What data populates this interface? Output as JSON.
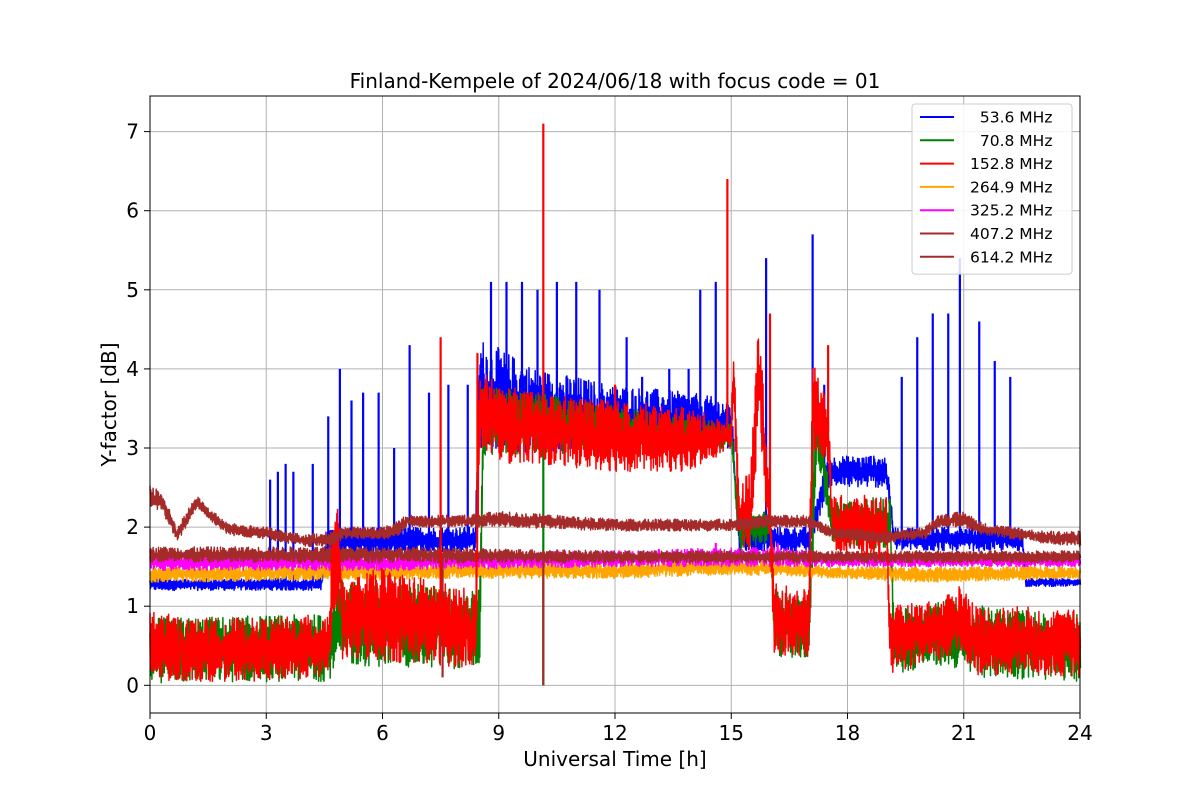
{
  "chart_data": {
    "type": "line",
    "title": "Finland-Kempele of 2024/06/18 with focus code = 01",
    "xlabel": "Universal Time [h]",
    "ylabel": "Y-factor [dB]",
    "xlim": [
      0,
      24
    ],
    "ylim": [
      -0.35,
      7.45
    ],
    "xticks": [
      0,
      3,
      6,
      9,
      12,
      15,
      18,
      21,
      24
    ],
    "xtick_labels": [
      "0",
      "3",
      "6",
      "9",
      "12",
      "15",
      "18",
      "21",
      "24"
    ],
    "yticks": [
      0,
      1,
      2,
      3,
      4,
      5,
      6,
      7
    ],
    "ytick_labels": [
      "0",
      "1",
      "2",
      "3",
      "4",
      "5",
      "6",
      "7"
    ],
    "grid": true,
    "legend_position": "top-right",
    "series": [
      {
        "name": "  53.6 MHz",
        "color": "#0000ff",
        "band": [
          [
            0,
            1.2,
            1.35
          ],
          [
            3,
            1.2,
            1.35
          ],
          [
            4.4,
            1.2,
            1.35
          ],
          [
            4.6,
            1.6,
            2.0
          ],
          [
            8.4,
            1.7,
            2.0
          ],
          [
            8.5,
            3.0,
            4.4
          ],
          [
            10,
            2.9,
            4.0
          ],
          [
            12,
            3.0,
            3.8
          ],
          [
            14,
            3.0,
            3.7
          ],
          [
            15,
            3.0,
            3.6
          ],
          [
            15.2,
            1.7,
            2.0
          ],
          [
            17,
            1.7,
            2.0
          ],
          [
            17.5,
            2.5,
            2.9
          ],
          [
            19,
            2.5,
            2.9
          ],
          [
            19.2,
            1.7,
            2.0
          ],
          [
            22.5,
            1.7,
            2.0
          ],
          [
            22.6,
            1.25,
            1.35
          ],
          [
            24,
            1.25,
            1.35
          ]
        ],
        "spikes": [
          [
            3.1,
            2.6
          ],
          [
            3.3,
            2.7
          ],
          [
            3.5,
            2.8
          ],
          [
            3.7,
            2.7
          ],
          [
            4.2,
            2.8
          ],
          [
            4.6,
            3.4
          ],
          [
            4.9,
            4.0
          ],
          [
            5.2,
            3.6
          ],
          [
            5.5,
            3.7
          ],
          [
            5.9,
            3.7
          ],
          [
            6.3,
            3.0
          ],
          [
            6.7,
            4.3
          ],
          [
            7.2,
            3.7
          ],
          [
            7.7,
            3.8
          ],
          [
            8.2,
            3.8
          ],
          [
            8.8,
            5.1
          ],
          [
            9.2,
            5.1
          ],
          [
            9.6,
            5.1
          ],
          [
            10.0,
            5.0
          ],
          [
            10.5,
            5.1
          ],
          [
            11.0,
            5.1
          ],
          [
            11.6,
            5.0
          ],
          [
            12.3,
            4.4
          ],
          [
            12.7,
            3.9
          ],
          [
            13.4,
            4.0
          ],
          [
            13.9,
            4.0
          ],
          [
            14.2,
            5.0
          ],
          [
            14.6,
            5.1
          ],
          [
            15.9,
            5.4
          ],
          [
            17.1,
            5.7
          ],
          [
            17.4,
            3.8
          ],
          [
            18.6,
            2.9
          ],
          [
            19.4,
            3.9
          ],
          [
            19.8,
            4.4
          ],
          [
            20.2,
            4.7
          ],
          [
            20.6,
            4.7
          ],
          [
            20.9,
            5.4
          ],
          [
            21.4,
            4.6
          ],
          [
            21.8,
            4.1
          ],
          [
            22.2,
            3.9
          ]
        ]
      },
      {
        "name": "  70.8 MHz",
        "color": "#008000",
        "band": [
          [
            0,
            0.03,
            0.85
          ],
          [
            4.6,
            0.05,
            0.9
          ],
          [
            4.8,
            0.25,
            1.4
          ],
          [
            8.5,
            0.2,
            1.2
          ],
          [
            8.6,
            2.9,
            3.8
          ],
          [
            15,
            3.0,
            3.3
          ],
          [
            15.2,
            1.7,
            2.2
          ],
          [
            16,
            1.8,
            2.2
          ],
          [
            16.1,
            0.35,
            1.2
          ],
          [
            17,
            0.35,
            1.1
          ],
          [
            17.2,
            2.9,
            3.7
          ],
          [
            17.6,
            1.8,
            2.3
          ],
          [
            19.1,
            1.7,
            2.4
          ],
          [
            19.2,
            0.15,
            0.95
          ],
          [
            20.5,
            0.25,
            1.1
          ],
          [
            21.5,
            0.1,
            1.0
          ],
          [
            24,
            0.05,
            0.9
          ]
        ],
        "spikes": [
          [
            10.15,
            0.0
          ],
          [
            17.1,
            3.7
          ]
        ]
      },
      {
        "name": "152.8 MHz",
        "color": "#ff0000",
        "band": [
          [
            0,
            0.05,
            0.95
          ],
          [
            1,
            0.05,
            0.85
          ],
          [
            3,
            0.05,
            0.85
          ],
          [
            4.4,
            0.1,
            0.9
          ],
          [
            4.65,
            0.2,
            1.0
          ],
          [
            4.7,
            0.8,
            2.3
          ],
          [
            4.9,
            0.8,
            2.2
          ],
          [
            4.95,
            0.3,
            1.3
          ],
          [
            6,
            0.3,
            1.5
          ],
          [
            7.5,
            0.25,
            1.3
          ],
          [
            8.4,
            0.2,
            1.2
          ],
          [
            8.5,
            3.0,
            4.0
          ],
          [
            9.0,
            2.8,
            3.8
          ],
          [
            10,
            2.8,
            3.7
          ],
          [
            12,
            2.7,
            3.6
          ],
          [
            14,
            2.7,
            3.5
          ],
          [
            15,
            3.0,
            3.3
          ],
          [
            15.05,
            3.5,
            4.4
          ],
          [
            15.2,
            1.6,
            2.6
          ],
          [
            15.5,
            1.7,
            2.7
          ],
          [
            15.7,
            3.3,
            4.7
          ],
          [
            16.0,
            1.6,
            2.6
          ],
          [
            16.1,
            0.35,
            1.3
          ],
          [
            17,
            0.35,
            1.2
          ],
          [
            17.1,
            3.0,
            4.2
          ],
          [
            17.5,
            2.8,
            3.6
          ],
          [
            17.6,
            1.7,
            2.4
          ],
          [
            19.0,
            1.6,
            2.4
          ],
          [
            19.1,
            0.15,
            1.0
          ],
          [
            20.5,
            0.3,
            1.1
          ],
          [
            20.9,
            0.4,
            1.3
          ],
          [
            21.4,
            0.1,
            1.0
          ],
          [
            22.5,
            0.15,
            1.0
          ],
          [
            24,
            0.1,
            0.95
          ]
        ],
        "spikes": [
          [
            7.5,
            4.4
          ],
          [
            8.45,
            4.2
          ],
          [
            10.15,
            7.1
          ],
          [
            12.0,
            3.8
          ],
          [
            14.9,
            6.4
          ],
          [
            16.0,
            4.7
          ],
          [
            17.5,
            4.3
          ]
        ]
      },
      {
        "name": "264.9 MHz",
        "color": "#ffa500",
        "band": [
          [
            0,
            1.3,
            1.5
          ],
          [
            8,
            1.35,
            1.55
          ],
          [
            12,
            1.35,
            1.55
          ],
          [
            15,
            1.4,
            1.6
          ],
          [
            18,
            1.35,
            1.5
          ],
          [
            20,
            1.3,
            1.5
          ],
          [
            24,
            1.35,
            1.5
          ]
        ],
        "spikes": []
      },
      {
        "name": "325.2 MHz",
        "color": "#ff00ff",
        "band": [
          [
            0,
            1.45,
            1.65
          ],
          [
            6,
            1.45,
            1.65
          ],
          [
            12,
            1.5,
            1.7
          ],
          [
            16,
            1.5,
            1.75
          ],
          [
            18,
            1.5,
            1.65
          ],
          [
            24,
            1.5,
            1.65
          ]
        ],
        "spikes": [
          [
            14.6,
            1.8
          ],
          [
            16.2,
            1.8
          ]
        ]
      },
      {
        "name": "407.2 MHz",
        "color": "#a52a2a",
        "band": [
          [
            0,
            1.55,
            1.75
          ],
          [
            6,
            1.55,
            1.75
          ],
          [
            12,
            1.55,
            1.7
          ],
          [
            18,
            1.55,
            1.7
          ],
          [
            24,
            1.55,
            1.7
          ]
        ],
        "spikes": [
          [
            7.55,
            0.1
          ],
          [
            10.15,
            0.0
          ]
        ]
      },
      {
        "name": "614.2 MHz",
        "color": "#a52a2a",
        "band": [
          [
            0,
            2.25,
            2.55
          ],
          [
            0.3,
            2.2,
            2.45
          ],
          [
            0.7,
            1.8,
            2.0
          ],
          [
            1.2,
            2.25,
            2.4
          ],
          [
            1.5,
            2.1,
            2.25
          ],
          [
            2,
            1.9,
            2.05
          ],
          [
            3,
            1.85,
            2.0
          ],
          [
            4,
            1.75,
            1.9
          ],
          [
            4.7,
            1.75,
            1.95
          ],
          [
            5,
            1.85,
            2.0
          ],
          [
            6,
            1.85,
            2.0
          ],
          [
            6.3,
            1.85,
            2.05
          ],
          [
            6.6,
            2.0,
            2.15
          ],
          [
            8,
            2.0,
            2.15
          ],
          [
            9,
            2.0,
            2.2
          ],
          [
            12,
            1.95,
            2.1
          ],
          [
            15,
            1.95,
            2.1
          ],
          [
            16,
            2.0,
            2.15
          ],
          [
            17,
            2.0,
            2.15
          ],
          [
            17.6,
            1.85,
            2.0
          ],
          [
            19,
            1.8,
            1.95
          ],
          [
            20,
            1.85,
            2.0
          ],
          [
            20.3,
            2.0,
            2.15
          ],
          [
            21,
            2.0,
            2.2
          ],
          [
            21.5,
            1.9,
            2.05
          ],
          [
            23,
            1.8,
            1.95
          ],
          [
            24,
            1.75,
            1.95
          ]
        ],
        "spikes": []
      }
    ]
  }
}
